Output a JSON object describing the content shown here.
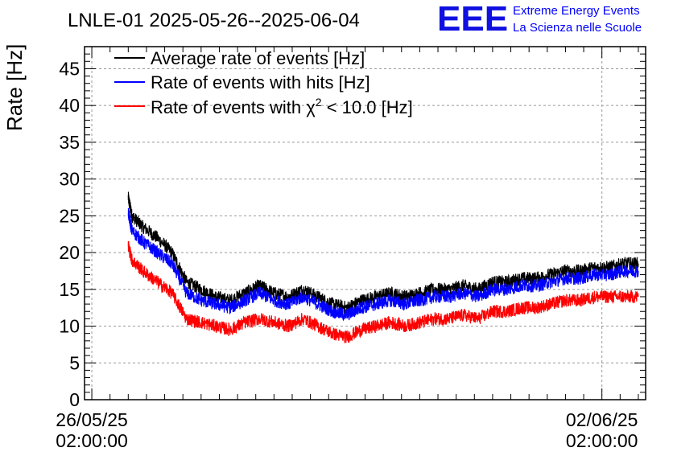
{
  "header": {
    "title": "LNLE-01 2025-05-26--2025-06-04",
    "logo_text": "EEE",
    "org_line1": "Extreme Energy Events",
    "org_line2": "La Scienza nelle Scuole"
  },
  "colors": {
    "average": "#000000",
    "hits": "#0000ff",
    "chi2": "#ff0000",
    "grid": "#999999",
    "logo": "#1010e0"
  },
  "chart_data": {
    "type": "line",
    "title": "LNLE-01 2025-05-26--2025-06-04",
    "ylabel": "Rate [Hz]",
    "xlabel": "",
    "ylim": [
      0,
      48
    ],
    "yticks": [
      0,
      5,
      10,
      15,
      20,
      25,
      30,
      35,
      40,
      45
    ],
    "xlim_days": [
      -0.1,
      7.6
    ],
    "xticks": [
      {
        "day": 0,
        "line1": "26/05/25",
        "line2": "02:00:00"
      },
      {
        "day": 7,
        "line1": "02/06/25",
        "line2": "02:00:00"
      }
    ],
    "grid": true,
    "legend_position": "top-left",
    "x_days": [
      0.5,
      0.55,
      0.7,
      0.9,
      1.1,
      1.3,
      1.5,
      1.7,
      1.9,
      2.1,
      2.3,
      2.5,
      2.7,
      2.9,
      3.1,
      3.3,
      3.5,
      3.7,
      3.9,
      4.1,
      4.3,
      4.5,
      4.7,
      4.9,
      5.1,
      5.3,
      5.5,
      5.7,
      5.9,
      6.1,
      6.3,
      6.5,
      6.7,
      6.9,
      7.1,
      7.3,
      7.5
    ],
    "series": [
      {
        "name": "Average rate of events [Hz]",
        "legend_text": "Average rate of events [Hz]",
        "color_key": "average",
        "values": [
          27.5,
          25,
          23.5,
          22,
          20,
          16,
          15,
          14,
          13.5,
          14.5,
          15.5,
          14.5,
          14,
          15,
          14,
          13,
          12.5,
          13.5,
          14,
          14.5,
          14,
          14.5,
          15,
          15,
          15.5,
          15,
          16,
          16,
          16.5,
          16.5,
          17,
          17.5,
          17.5,
          18,
          18,
          18.5,
          18.5
        ]
      },
      {
        "name": "Rate of events with hits [Hz]",
        "legend_text": "Rate of events with hits [Hz]",
        "color_key": "hits",
        "values": [
          25.5,
          23,
          21.5,
          20,
          18.5,
          14.5,
          13.5,
          13,
          12.5,
          13.5,
          14.5,
          13.5,
          13,
          14,
          13,
          12,
          11.5,
          12.5,
          13,
          13.5,
          13,
          13.5,
          14,
          14,
          14.5,
          14,
          15,
          15,
          15.5,
          15.5,
          16,
          16.5,
          16.5,
          17,
          17,
          17.5,
          17.5
        ]
      },
      {
        "name": "Rate of events with chi2 < 10.0 [Hz]",
        "legend_text": "Rate of events with",
        "legend_sym": "χ",
        "legend_sup": "2",
        "legend_suffix": "< 10.0 [Hz]",
        "color_key": "chi2",
        "values": [
          21,
          19,
          17.5,
          16,
          14.5,
          11,
          10.5,
          10,
          9.5,
          10.5,
          11,
          10.5,
          10,
          11,
          10,
          9,
          8.5,
          9.5,
          10,
          10.5,
          10,
          10.5,
          11,
          11,
          11.5,
          11,
          12,
          12,
          12.5,
          12.5,
          13,
          13.5,
          13.5,
          14,
          14,
          14,
          14
        ]
      }
    ]
  }
}
